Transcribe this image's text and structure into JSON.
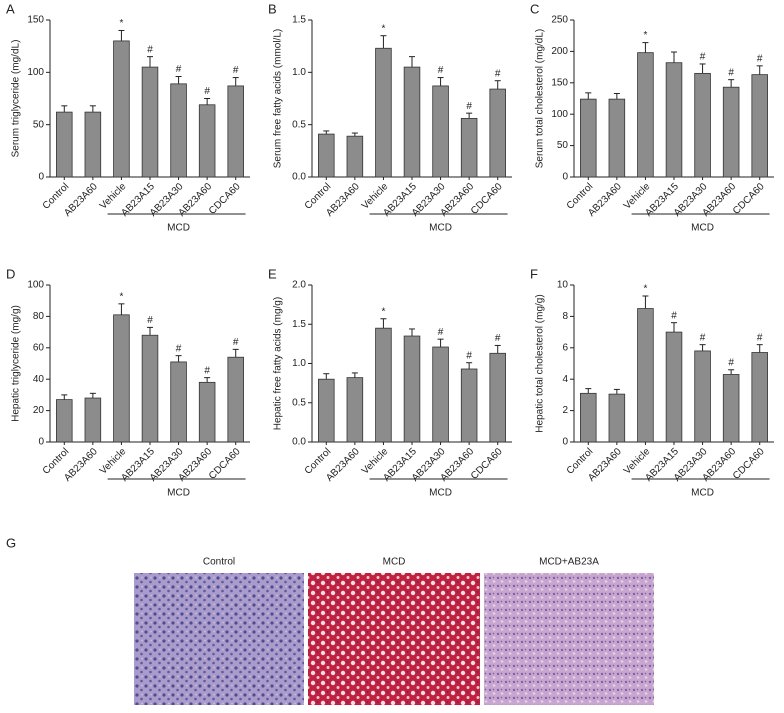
{
  "chart_data": [
    {
      "type": "bar",
      "panel": "A",
      "ylabel": "Serum triglyceride (mg/dL)",
      "categories": [
        "Control",
        "AB23A60",
        "Vehicle",
        "AB23A15",
        "AB23A30",
        "AB23A60",
        "CDCA60"
      ],
      "values": [
        62,
        62,
        130,
        105,
        89,
        69,
        87
      ],
      "errors": [
        6,
        6,
        10,
        10,
        7,
        6,
        8
      ],
      "annotations": [
        null,
        null,
        "*",
        "#",
        "#",
        "#",
        "#"
      ],
      "group": {
        "label": "MCD",
        "from": 2,
        "to": 6
      },
      "color": "#8c8c8c",
      "ylim": [
        0,
        150
      ],
      "yticks": [
        0,
        50,
        100,
        150
      ]
    },
    {
      "type": "bar",
      "panel": "B",
      "ylabel": "Serum free fatty acids (mmol/L)",
      "categories": [
        "Control",
        "AB23A60",
        "Vehicle",
        "AB23A15",
        "AB23A30",
        "AB23A60",
        "CDCA60"
      ],
      "values": [
        0.41,
        0.39,
        1.23,
        1.05,
        0.87,
        0.56,
        0.84
      ],
      "errors": [
        0.03,
        0.03,
        0.12,
        0.1,
        0.08,
        0.05,
        0.08
      ],
      "annotations": [
        null,
        null,
        "*",
        null,
        "#",
        "#",
        "#"
      ],
      "group": {
        "label": "MCD",
        "from": 2,
        "to": 6
      },
      "color": "#8c8c8c",
      "ylim": [
        0,
        1.5
      ],
      "yticks": [
        {
          "value": 0,
          "label": "0.0"
        },
        0.5,
        {
          "value": 1,
          "label": "1.0"
        },
        1.5
      ]
    },
    {
      "type": "bar",
      "panel": "C",
      "ylabel": "Serum total cholesterol (mg/dL)",
      "categories": [
        "Control",
        "AB23A60",
        "Vehicle",
        "AB23A15",
        "AB23A30",
        "AB23A60",
        "CDCA60"
      ],
      "values": [
        124,
        124,
        198,
        182,
        165,
        143,
        163
      ],
      "errors": [
        10,
        9,
        16,
        17,
        15,
        12,
        14
      ],
      "annotations": [
        null,
        null,
        "*",
        null,
        "#",
        "#",
        "#"
      ],
      "group": {
        "label": "MCD",
        "from": 2,
        "to": 6
      },
      "color": "#8c8c8c",
      "ylim": [
        0,
        250
      ],
      "yticks": [
        0,
        50,
        100,
        150,
        200,
        250
      ]
    },
    {
      "type": "bar",
      "panel": "D",
      "ylabel": "Hepatic triglyceride (mg/g)",
      "categories": [
        "Control",
        "AB23A60",
        "Vehicle",
        "AB23A15",
        "AB23A30",
        "AB23A60",
        "CDCA60"
      ],
      "values": [
        27,
        28,
        81,
        68,
        51,
        38,
        54
      ],
      "errors": [
        3,
        3,
        7,
        5,
        4,
        3,
        5
      ],
      "annotations": [
        null,
        null,
        "*",
        "#",
        "#",
        "#",
        "#"
      ],
      "group": {
        "label": "MCD",
        "from": 2,
        "to": 6
      },
      "color": "#8c8c8c",
      "ylim": [
        0,
        100
      ],
      "yticks": [
        0,
        20,
        40,
        60,
        80,
        100
      ]
    },
    {
      "type": "bar",
      "panel": "E",
      "ylabel": "Hepatic free fatty acids (mg/g)",
      "categories": [
        "Control",
        "AB23A60",
        "Vehicle",
        "AB23A15",
        "AB23A30",
        "AB23A60",
        "CDCA60"
      ],
      "values": [
        0.8,
        0.82,
        1.45,
        1.35,
        1.21,
        0.93,
        1.13
      ],
      "errors": [
        0.07,
        0.06,
        0.12,
        0.09,
        0.1,
        0.08,
        0.1
      ],
      "annotations": [
        null,
        null,
        "*",
        null,
        "#",
        "#",
        "#"
      ],
      "group": {
        "label": "MCD",
        "from": 2,
        "to": 6
      },
      "color": "#8c8c8c",
      "ylim": [
        0,
        2
      ],
      "yticks": [
        {
          "value": 0,
          "label": "0.0"
        },
        0.5,
        {
          "value": 1,
          "label": "1.0"
        },
        1.5,
        {
          "value": 2,
          "label": "2.0"
        }
      ]
    },
    {
      "type": "bar",
      "panel": "F",
      "ylabel": "Hepatic total cholesterol (mg/g)",
      "categories": [
        "Control",
        "AB23A60",
        "Vehicle",
        "AB23A15",
        "AB23A30",
        "AB23A60",
        "CDCA60"
      ],
      "values": [
        3.1,
        3.05,
        8.5,
        7.0,
        5.8,
        4.3,
        5.7
      ],
      "errors": [
        0.3,
        0.3,
        0.8,
        0.6,
        0.4,
        0.3,
        0.5
      ],
      "annotations": [
        null,
        null,
        "*",
        "#",
        "#",
        "#",
        "#"
      ],
      "group": {
        "label": "MCD",
        "from": 2,
        "to": 6
      },
      "color": "#8c8c8c",
      "ylim": [
        0,
        10
      ],
      "yticks": [
        0,
        2,
        4,
        6,
        8,
        10
      ]
    }
  ],
  "histology": {
    "panel": "G",
    "labels": [
      "Control",
      "MCD",
      "MCD+AB23A"
    ]
  }
}
